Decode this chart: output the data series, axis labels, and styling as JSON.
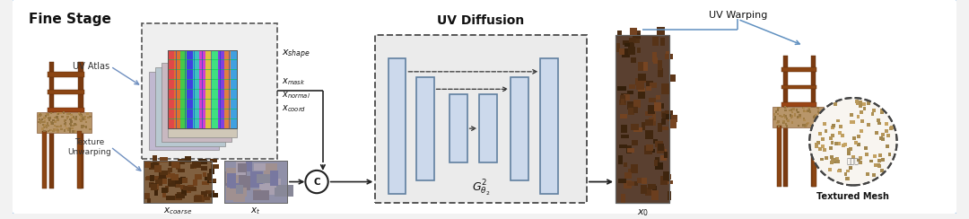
{
  "title": "Fine Stage",
  "bg_outer": "#ffffff",
  "bg_border": "#a8c8e8",
  "labels": {
    "uv_atlas": "UV Atlas",
    "texture_unwarping": "Texture\nUnwarping",
    "x_shape": "$x_{shape}$",
    "x_mask": "$x_{mask}$",
    "x_normal": "$x_{normal}$",
    "x_coord": "$x_{coord}$",
    "x_coarse": "$x_{coarse}$",
    "x_t": "$x_t$",
    "x_0": "$x_0$",
    "uv_diffusion": "UV Diffusion",
    "G_theta": "$G_{\\theta_2}^2$",
    "uv_warping": "UV Warping",
    "textured_mesh": "Textured Mesh",
    "c_label": "C"
  },
  "colors": {
    "blue_fill": "#ccd9ec",
    "blue_edge": "#6080a0",
    "dash_fill": "#ebebeb",
    "dash_edge": "#555555",
    "arrow_blue": "#6090c0",
    "arrow_black": "#222222",
    "white": "#ffffff",
    "text_dark": "#111111",
    "chair_brown": "#8B4513",
    "chair_seat": "#b8966a",
    "chair_bg": "#f0ede5"
  }
}
